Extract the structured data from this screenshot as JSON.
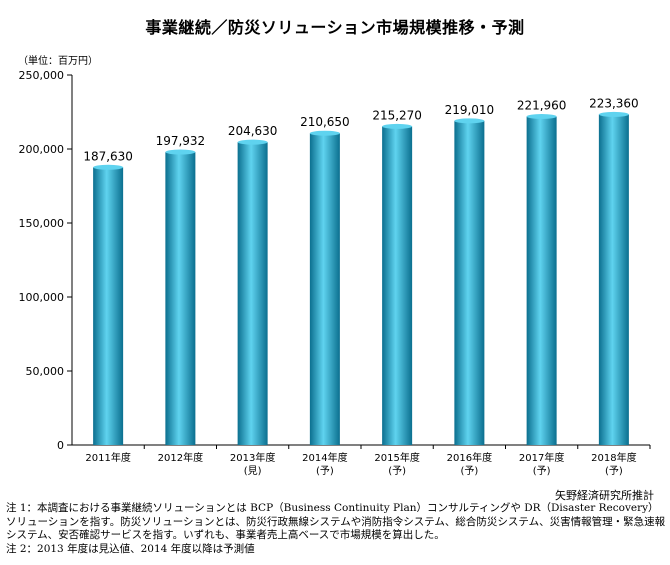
{
  "title": "事業継続／防災ソリューション市場規模推移・予測",
  "unit_label": "（単位：百万円）",
  "source": "矢野経済研究所推計",
  "notes": [
    "注 1：本調査における事業継続ソリューションとは BCP（Business Continuity Plan）コンサルティングや DR（Disaster Recovery）ソリューションを指す。防災ソリューションとは、防災行政無線システムや消防指令システム、総合防災システム、災害情報管理・緊急速報システム、安否確認サービスを指す。いずれも、事業者売上高ベースで市場規模を算出した。",
    "注 2：2013 年度は見込値、2014 年度以降は予測値"
  ],
  "colors": {
    "bar_light": "#5fd3ef",
    "bar_mid": "#1aa3c8",
    "bar_dark": "#0b6f8f",
    "axis": "#000000"
  },
  "chart_data": {
    "type": "bar",
    "categories": [
      [
        "2011年度"
      ],
      [
        "2012年度"
      ],
      [
        "2013年度",
        "(見)"
      ],
      [
        "2014年度",
        "(予)"
      ],
      [
        "2015年度",
        "(予)"
      ],
      [
        "2016年度",
        "(予)"
      ],
      [
        "2017年度",
        "(予)"
      ],
      [
        "2018年度",
        "(予)"
      ]
    ],
    "values": [
      187630,
      197932,
      204630,
      210650,
      215270,
      219010,
      221960,
      223360
    ],
    "value_labels": [
      "187,630",
      "197,932",
      "204,630",
      "210,650",
      "215,270",
      "219,010",
      "221,960",
      "223,360"
    ],
    "y_ticks": [
      0,
      50000,
      100000,
      150000,
      200000,
      250000
    ],
    "y_tick_labels": [
      "0",
      "50,000",
      "100,000",
      "150,000",
      "200,000",
      "250,000"
    ],
    "ylim": [
      0,
      250000
    ],
    "grid": false,
    "legend": "none"
  }
}
